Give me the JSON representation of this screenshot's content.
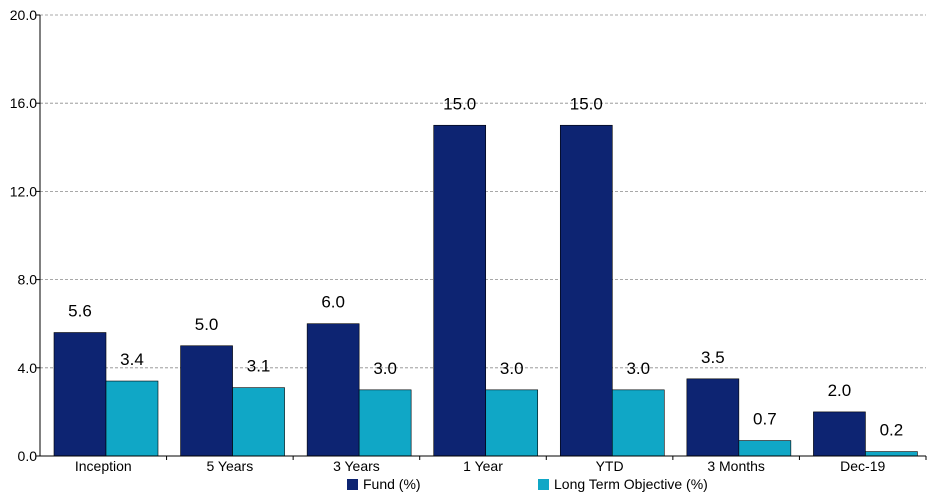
{
  "chart_data": {
    "type": "bar",
    "categories": [
      "Inception",
      "5 Years",
      "3 Years",
      "1 Year",
      "YTD",
      "3 Months",
      "Dec-19"
    ],
    "series": [
      {
        "name": "Fund (%)",
        "color": "#0d2472",
        "values": [
          5.6,
          5.0,
          6.0,
          15.0,
          15.0,
          3.5,
          2.0
        ]
      },
      {
        "name": "Long Term Objective (%)",
        "color": "#10a7c6",
        "values": [
          3.4,
          3.1,
          3.0,
          3.0,
          3.0,
          0.7,
          0.2
        ]
      }
    ],
    "ylim": [
      0,
      20
    ],
    "yticks": [
      "0.0",
      "4.0",
      "8.0",
      "12.0",
      "16.0",
      "20.0"
    ],
    "grid": true,
    "legend_position": "bottom",
    "data_labels": true
  }
}
